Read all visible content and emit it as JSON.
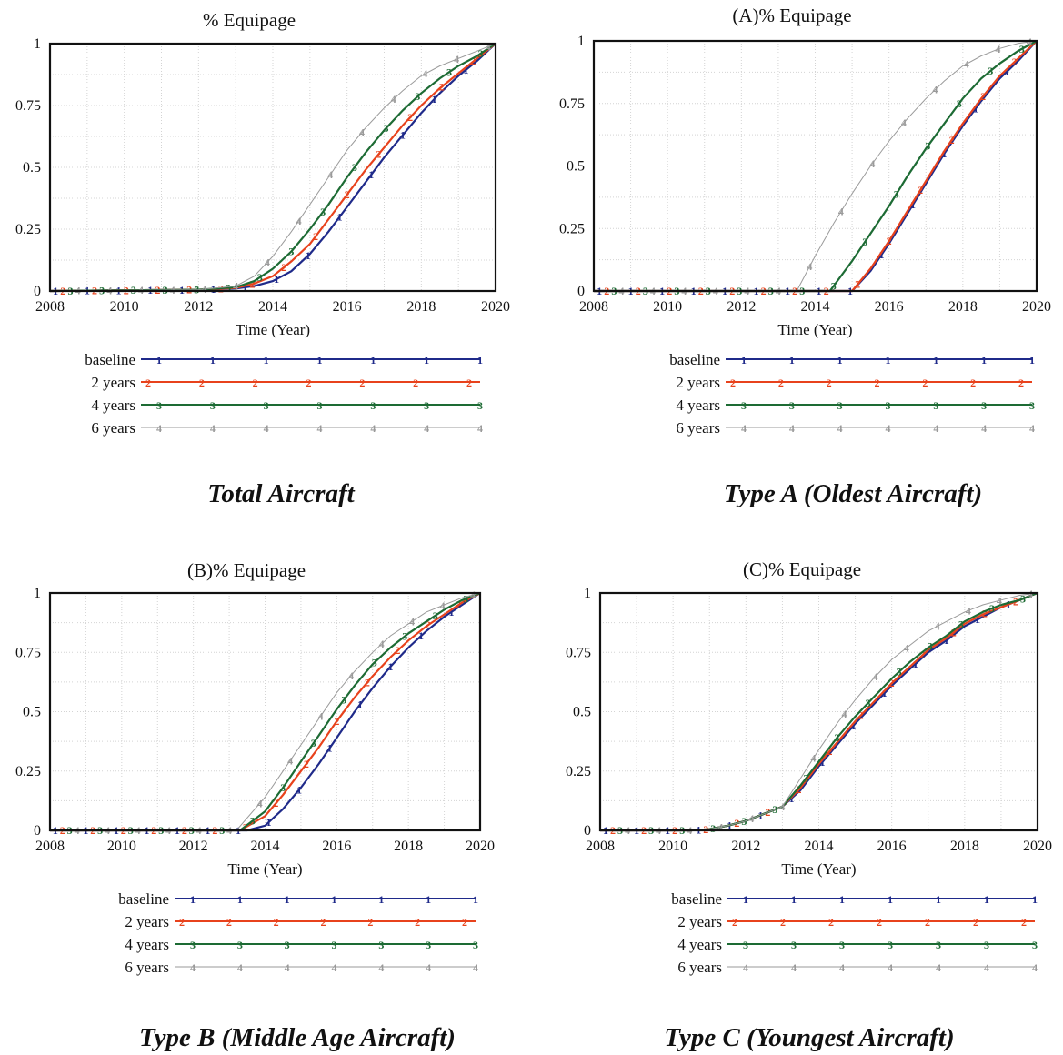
{
  "chart_data": [
    {
      "type": "line",
      "title": "% Equipage",
      "caption": "Total Aircraft",
      "xlabel": "Time (Year)",
      "ylabel": "",
      "xlim": [
        2008,
        2020
      ],
      "ylim": [
        0,
        1
      ],
      "xticks": [
        "2008",
        "2010",
        "2012",
        "2014",
        "2016",
        "2018",
        "2020"
      ],
      "yticks": [
        "0",
        "0.25",
        "0.5",
        "0.75",
        "1"
      ],
      "grid": true,
      "legend_position": "below",
      "series": [
        {
          "name": "baseline",
          "marker": "1",
          "color": "#1f2a8a",
          "x": [
            2008,
            2012,
            2013,
            2013.5,
            2014,
            2014.5,
            2015,
            2015.5,
            2016,
            2016.5,
            2017,
            2017.5,
            2018,
            2018.5,
            2019,
            2019.5,
            2020
          ],
          "y": [
            0,
            0.005,
            0.01,
            0.02,
            0.04,
            0.08,
            0.15,
            0.24,
            0.34,
            0.44,
            0.54,
            0.63,
            0.72,
            0.8,
            0.87,
            0.93,
            1.0
          ]
        },
        {
          "name": "2 years",
          "marker": "2",
          "color": "#e8421c",
          "x": [
            2008,
            2012,
            2013,
            2013.5,
            2014,
            2014.5,
            2015,
            2015.5,
            2016,
            2016.5,
            2017,
            2017.5,
            2018,
            2018.5,
            2019,
            2019.5,
            2020
          ],
          "y": [
            0,
            0.005,
            0.012,
            0.03,
            0.06,
            0.12,
            0.19,
            0.29,
            0.39,
            0.49,
            0.58,
            0.67,
            0.75,
            0.82,
            0.88,
            0.94,
            1.0
          ]
        },
        {
          "name": "4 years",
          "marker": "3",
          "color": "#1d6b34",
          "x": [
            2008,
            2012,
            2013,
            2013.5,
            2014,
            2014.5,
            2015,
            2015.5,
            2016,
            2016.5,
            2017,
            2017.5,
            2018,
            2018.5,
            2019,
            2019.5,
            2020
          ],
          "y": [
            0,
            0.005,
            0.015,
            0.04,
            0.09,
            0.16,
            0.25,
            0.35,
            0.46,
            0.56,
            0.65,
            0.73,
            0.8,
            0.86,
            0.91,
            0.95,
            1.0
          ]
        },
        {
          "name": "6 years",
          "marker": "4",
          "color": "#9a9a9a",
          "x": [
            2008,
            2012,
            2013,
            2013.5,
            2014,
            2014.5,
            2015,
            2015.5,
            2016,
            2016.5,
            2017,
            2017.5,
            2018,
            2018.5,
            2019,
            2019.5,
            2020
          ],
          "y": [
            0,
            0.005,
            0.02,
            0.06,
            0.14,
            0.24,
            0.35,
            0.46,
            0.57,
            0.66,
            0.74,
            0.81,
            0.87,
            0.91,
            0.94,
            0.97,
            1.0
          ]
        }
      ]
    },
    {
      "type": "line",
      "title": "(A)% Equipage",
      "caption": "Type A (Oldest Aircraft)",
      "xlabel": "Time (Year)",
      "ylabel": "",
      "xlim": [
        2008,
        2020
      ],
      "ylim": [
        0,
        1
      ],
      "xticks": [
        "2008",
        "2010",
        "2012",
        "2014",
        "2016",
        "2018",
        "2020"
      ],
      "yticks": [
        "0",
        "0.25",
        "0.5",
        "0.75",
        "1"
      ],
      "grid": true,
      "legend_position": "below",
      "series": [
        {
          "name": "baseline",
          "marker": "1",
          "color": "#1f2a8a",
          "x": [
            2008,
            2015,
            2015.5,
            2016,
            2016.5,
            2017,
            2017.5,
            2018,
            2018.5,
            2019,
            2019.5,
            2020
          ],
          "y": [
            0,
            0,
            0.08,
            0.19,
            0.31,
            0.43,
            0.55,
            0.66,
            0.76,
            0.85,
            0.92,
            1.0
          ]
        },
        {
          "name": "2 years",
          "marker": "2",
          "color": "#e8421c",
          "x": [
            2008,
            2015,
            2015.5,
            2016,
            2016.5,
            2017,
            2017.5,
            2018,
            2018.5,
            2019,
            2019.5,
            2020
          ],
          "y": [
            0,
            0,
            0.09,
            0.2,
            0.32,
            0.44,
            0.56,
            0.67,
            0.77,
            0.86,
            0.93,
            1.0
          ]
        },
        {
          "name": "4 years",
          "marker": "3",
          "color": "#1d6b34",
          "x": [
            2008,
            2014.4,
            2015,
            2015.5,
            2016,
            2016.5,
            2017,
            2017.5,
            2018,
            2018.5,
            2019,
            2019.5,
            2020
          ],
          "y": [
            0,
            0,
            0.12,
            0.23,
            0.34,
            0.46,
            0.57,
            0.67,
            0.77,
            0.85,
            0.91,
            0.96,
            1.0
          ]
        },
        {
          "name": "6 years",
          "marker": "4",
          "color": "#9a9a9a",
          "x": [
            2008,
            2013.5,
            2014,
            2014.5,
            2015,
            2015.5,
            2016,
            2016.5,
            2017,
            2017.5,
            2018,
            2018.5,
            2019,
            2019.5,
            2020
          ],
          "y": [
            0,
            0,
            0.14,
            0.27,
            0.39,
            0.5,
            0.6,
            0.69,
            0.77,
            0.84,
            0.9,
            0.94,
            0.97,
            0.99,
            1.0
          ]
        }
      ]
    },
    {
      "type": "line",
      "title": "(B)% Equipage",
      "caption": "Type B (Middle Age Aircraft)",
      "xlabel": "Time (Year)",
      "ylabel": "",
      "xlim": [
        2008,
        2020
      ],
      "ylim": [
        0,
        1
      ],
      "xticks": [
        "2008",
        "2010",
        "2012",
        "2014",
        "2016",
        "2018",
        "2020"
      ],
      "yticks": [
        "0",
        "0.25",
        "0.5",
        "0.75",
        "1"
      ],
      "grid": true,
      "legend_position": "below",
      "series": [
        {
          "name": "baseline",
          "marker": "1",
          "color": "#1f2a8a",
          "x": [
            2008,
            2013.5,
            2014,
            2014.5,
            2015,
            2015.5,
            2016,
            2016.5,
            2017,
            2017.5,
            2018,
            2018.5,
            2019,
            2019.5,
            2020
          ],
          "y": [
            0,
            0,
            0.02,
            0.09,
            0.18,
            0.28,
            0.39,
            0.5,
            0.6,
            0.69,
            0.77,
            0.84,
            0.9,
            0.95,
            1.0
          ]
        },
        {
          "name": "2 years",
          "marker": "2",
          "color": "#e8421c",
          "x": [
            2008,
            2013.3,
            2014,
            2014.5,
            2015,
            2015.5,
            2016,
            2016.5,
            2017,
            2017.5,
            2018,
            2018.5,
            2019,
            2019.5,
            2020
          ],
          "y": [
            0,
            0,
            0.06,
            0.15,
            0.25,
            0.35,
            0.46,
            0.56,
            0.65,
            0.73,
            0.8,
            0.86,
            0.91,
            0.96,
            1.0
          ]
        },
        {
          "name": "4 years",
          "marker": "3",
          "color": "#1d6b34",
          "x": [
            2008,
            2013.3,
            2014,
            2014.5,
            2015,
            2015.5,
            2016,
            2016.5,
            2017,
            2017.5,
            2018,
            2018.5,
            2019,
            2019.5,
            2020
          ],
          "y": [
            0,
            0,
            0.08,
            0.18,
            0.29,
            0.4,
            0.51,
            0.61,
            0.7,
            0.77,
            0.83,
            0.88,
            0.93,
            0.97,
            1.0
          ]
        },
        {
          "name": "6 years",
          "marker": "4",
          "color": "#9a9a9a",
          "x": [
            2008,
            2013.2,
            2014,
            2014.5,
            2015,
            2015.5,
            2016,
            2016.5,
            2017,
            2017.5,
            2018,
            2018.5,
            2019,
            2019.5,
            2020
          ],
          "y": [
            0,
            0,
            0.14,
            0.25,
            0.36,
            0.47,
            0.58,
            0.67,
            0.75,
            0.82,
            0.87,
            0.92,
            0.95,
            0.98,
            1.0
          ]
        }
      ]
    },
    {
      "type": "line",
      "title": "(C)% Equipage",
      "caption": "Type C (Youngest Aircraft)",
      "xlabel": "Time (Year)",
      "ylabel": "",
      "xlim": [
        2008,
        2020
      ],
      "ylim": [
        0,
        1
      ],
      "xticks": [
        "2008",
        "2010",
        "2012",
        "2014",
        "2016",
        "2018",
        "2020"
      ],
      "yticks": [
        "0",
        "0.25",
        "0.5",
        "0.75",
        "1"
      ],
      "grid": true,
      "legend_position": "below",
      "series": [
        {
          "name": "baseline",
          "marker": "1",
          "color": "#1f2a8a",
          "x": [
            2008,
            2010.5,
            2011,
            2011.5,
            2012,
            2012.5,
            2013,
            2013.5,
            2014,
            2014.5,
            2015,
            2015.5,
            2016,
            2016.5,
            2017,
            2017.5,
            2018,
            2018.5,
            2019,
            2019.5,
            2020
          ],
          "y": [
            0,
            0,
            0.005,
            0.02,
            0.04,
            0.07,
            0.1,
            0.17,
            0.27,
            0.36,
            0.45,
            0.53,
            0.61,
            0.68,
            0.75,
            0.8,
            0.86,
            0.9,
            0.94,
            0.97,
            1.0
          ]
        },
        {
          "name": "2 years",
          "marker": "2",
          "color": "#e8421c",
          "x": [
            2008,
            2010.5,
            2011,
            2011.5,
            2012,
            2012.5,
            2013,
            2013.5,
            2014,
            2014.5,
            2015,
            2015.5,
            2016,
            2016.5,
            2017,
            2017.5,
            2018,
            2018.5,
            2019,
            2019.5,
            2020
          ],
          "y": [
            0,
            0,
            0.005,
            0.02,
            0.04,
            0.07,
            0.1,
            0.18,
            0.28,
            0.37,
            0.46,
            0.54,
            0.62,
            0.69,
            0.76,
            0.81,
            0.87,
            0.91,
            0.94,
            0.97,
            1.0
          ]
        },
        {
          "name": "4 years",
          "marker": "3",
          "color": "#1d6b34",
          "x": [
            2008,
            2010.5,
            2011,
            2011.5,
            2012,
            2012.5,
            2013,
            2013.5,
            2014,
            2014.5,
            2015,
            2015.5,
            2016,
            2016.5,
            2017,
            2017.5,
            2018,
            2018.5,
            2019,
            2019.5,
            2020
          ],
          "y": [
            0,
            0,
            0.005,
            0.02,
            0.04,
            0.07,
            0.1,
            0.19,
            0.29,
            0.39,
            0.48,
            0.56,
            0.64,
            0.71,
            0.77,
            0.82,
            0.88,
            0.92,
            0.95,
            0.97,
            1.0
          ]
        },
        {
          "name": "6 years",
          "marker": "4",
          "color": "#9a9a9a",
          "x": [
            2008,
            2010.5,
            2011,
            2011.5,
            2012,
            2012.5,
            2013,
            2013.5,
            2014,
            2014.5,
            2015,
            2015.5,
            2016,
            2016.5,
            2017,
            2017.5,
            2018,
            2018.5,
            2019,
            2019.5,
            2020
          ],
          "y": [
            0,
            0,
            0.005,
            0.02,
            0.04,
            0.07,
            0.1,
            0.22,
            0.34,
            0.45,
            0.55,
            0.64,
            0.72,
            0.78,
            0.84,
            0.88,
            0.92,
            0.95,
            0.97,
            0.99,
            1.0
          ]
        }
      ]
    }
  ]
}
